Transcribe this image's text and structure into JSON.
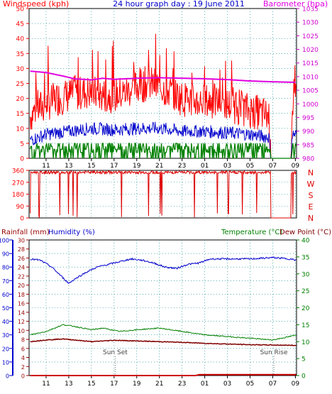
{
  "top_labels": {
    "windspeed": "Windspeed (kph)",
    "title": "24 hour graph day : 19 June 2011",
    "barometer": "Barometer (hpa)"
  },
  "bottom_labels": {
    "rainfall": "Rainfall (mm)",
    "humidity": "Humidity (%)",
    "temperature": "Temperature (°C)",
    "dewpoint": "Dew Point (°C)"
  },
  "annotations": {
    "sunset": "Sun Set",
    "sunrise": "Sun Rise"
  },
  "colors": {
    "wind_gust": "#ff0000",
    "wind_avg": "#0000cc",
    "wind_min": "#008000",
    "barometer": "#e000e0",
    "direction": "#dd0000",
    "humidity": "#0000cc",
    "temperature": "#008000",
    "dewpoint": "#800000",
    "rain": "#cc0000",
    "grid": "#008080",
    "axis_wind": "#ff0000",
    "axis_baro": "#d000d0",
    "axis_rain": "#0000cc",
    "axis_temp": "#008000"
  },
  "chart_data": [
    {
      "type": "line",
      "title": "24 hour graph day : 19 June 2011",
      "x_ticks": [
        "11",
        "13",
        "15",
        "17",
        "19",
        "21",
        "23",
        "01",
        "03",
        "05",
        "07",
        "09"
      ],
      "y_left": {
        "label": "Windspeed (kph)",
        "ticks": [
          0,
          5,
          10,
          15,
          20,
          25,
          30,
          35,
          40,
          45,
          50
        ],
        "range": [
          0,
          50
        ]
      },
      "y_right": {
        "label": "Barometer (hpa)",
        "ticks": [
          980,
          985,
          990,
          995,
          1000,
          1005,
          1010,
          1015,
          1020,
          1025,
          1030,
          1035
        ],
        "range": [
          980,
          1035
        ]
      },
      "x_range": [
        9.5,
        33.1
      ],
      "series": [
        {
          "name": "gust",
          "keys": [
            [
              9.6,
              14
            ],
            [
              10,
              16
            ],
            [
              11,
              18
            ],
            [
              12,
              20
            ],
            [
              13,
              21
            ],
            [
              14,
              22
            ],
            [
              15,
              22
            ],
            [
              16,
              21
            ],
            [
              17,
              21
            ],
            [
              18,
              22
            ],
            [
              19,
              24
            ],
            [
              20,
              25
            ],
            [
              21,
              24
            ],
            [
              22,
              22
            ],
            [
              23,
              20
            ],
            [
              24,
              19
            ],
            [
              25,
              19
            ],
            [
              26,
              19
            ],
            [
              27,
              18
            ],
            [
              28,
              17
            ],
            [
              29,
              16
            ],
            [
              30,
              15
            ],
            [
              30.7,
              14
            ],
            [
              30.8,
              0
            ],
            [
              32.6,
              0
            ],
            [
              32.7,
              18
            ],
            [
              33.1,
              19
            ]
          ]
        },
        {
          "name": "average",
          "keys": [
            [
              9.6,
              6
            ],
            [
              11,
              8
            ],
            [
              13,
              9
            ],
            [
              15,
              10
            ],
            [
              17,
              9.5
            ],
            [
              19,
              10
            ],
            [
              21,
              10
            ],
            [
              23,
              9
            ],
            [
              25,
              9
            ],
            [
              27,
              8.5
            ],
            [
              29,
              8
            ],
            [
              30.7,
              7
            ],
            [
              30.8,
              0
            ],
            [
              32.6,
              0
            ],
            [
              32.7,
              8
            ],
            [
              33.1,
              8
            ]
          ]
        },
        {
          "name": "low",
          "keys": [
            [
              9.6,
              3
            ],
            [
              13,
              3.5
            ],
            [
              19,
              4
            ],
            [
              23,
              3.5
            ],
            [
              27,
              3
            ],
            [
              30.7,
              3
            ],
            [
              30.8,
              0
            ],
            [
              32.6,
              0
            ],
            [
              32.7,
              4
            ],
            [
              33.1,
              4
            ]
          ]
        },
        {
          "name": "barometer",
          "keys": [
            [
              9.6,
              1012
            ],
            [
              11,
              1011.5
            ],
            [
              12.5,
              1010.2
            ],
            [
              13.5,
              1009.2
            ],
            [
              15,
              1008.8
            ],
            [
              16,
              1009.4
            ],
            [
              17,
              1009
            ],
            [
              19,
              1009.4
            ],
            [
              21,
              1009.6
            ],
            [
              23,
              1009.4
            ],
            [
              25,
              1009.2
            ],
            [
              27,
              1008.9
            ],
            [
              29,
              1008.4
            ],
            [
              31,
              1008.1
            ],
            [
              33.1,
              1007.9
            ]
          ]
        }
      ]
    },
    {
      "type": "scatter",
      "title": "",
      "y_left": {
        "ticks": [
          0,
          90,
          180,
          270,
          360
        ],
        "range": [
          0,
          360
        ]
      },
      "y_right_labels": [
        "N",
        "W",
        "S",
        "E",
        "N"
      ],
      "x_ticks": [
        "11",
        "13",
        "15",
        "17",
        "19",
        "21",
        "23",
        "01",
        "03",
        "05",
        "07",
        "09"
      ],
      "series": [
        {
          "name": "direction",
          "typical": 345,
          "gap": [
            30.8,
            32.6
          ]
        }
      ]
    },
    {
      "type": "line",
      "title": "",
      "x_ticks": [
        "11",
        "13",
        "15",
        "17",
        "19",
        "21",
        "23",
        "01",
        "03",
        "05",
        "07",
        "09"
      ],
      "y_rain": {
        "label": "Rainfall (mm)",
        "ticks": [
          0,
          2,
          4,
          6,
          8,
          10,
          12,
          14,
          16,
          18,
          20,
          22,
          24,
          26,
          28,
          30
        ],
        "range": [
          0,
          30
        ]
      },
      "y_humidity": {
        "label": "Humidity (%)",
        "ticks": [
          0,
          10,
          20,
          30,
          40,
          50,
          60,
          70,
          80,
          90,
          100
        ],
        "range": [
          0,
          100
        ]
      },
      "y_temp": {
        "label": "Temperature (°C)",
        "ticks": [
          0,
          5,
          10,
          15,
          20,
          25,
          30,
          35,
          40
        ],
        "range": [
          0,
          40
        ]
      },
      "series": [
        {
          "name": "humidity",
          "keys": [
            [
              9.6,
              86
            ],
            [
              10.5,
              85
            ],
            [
              11.5,
              80
            ],
            [
              12.5,
              72
            ],
            [
              13,
              68
            ],
            [
              13.5,
              71
            ],
            [
              14.5,
              76
            ],
            [
              15.5,
              80
            ],
            [
              16.5,
              82
            ],
            [
              17.5,
              84
            ],
            [
              18.5,
              86
            ],
            [
              19.5,
              85
            ],
            [
              20.5,
              83
            ],
            [
              21.5,
              80
            ],
            [
              22.5,
              79
            ],
            [
              23.5,
              82
            ],
            [
              24.5,
              83
            ],
            [
              25.5,
              86
            ],
            [
              27,
              86
            ],
            [
              29,
              86
            ],
            [
              31,
              87
            ],
            [
              32.5,
              86
            ],
            [
              33.1,
              85
            ]
          ]
        },
        {
          "name": "temperature",
          "keys": [
            [
              9.6,
              12
            ],
            [
              11,
              13
            ],
            [
              12.5,
              15
            ],
            [
              13.5,
              14.5
            ],
            [
              15,
              13.5
            ],
            [
              16,
              14
            ],
            [
              17.5,
              13
            ],
            [
              19,
              13.5
            ],
            [
              21,
              14
            ],
            [
              23,
              13
            ],
            [
              25,
              12
            ],
            [
              27,
              11.5
            ],
            [
              29,
              11
            ],
            [
              31,
              10.5
            ],
            [
              32.5,
              11.5
            ],
            [
              33.1,
              12
            ]
          ]
        },
        {
          "name": "dewpoint",
          "keys": [
            [
              9.6,
              10
            ],
            [
              11,
              10.5
            ],
            [
              12.5,
              10.8
            ],
            [
              13.5,
              10.5
            ],
            [
              15,
              10
            ],
            [
              17,
              10.4
            ],
            [
              19,
              10.2
            ],
            [
              21,
              10
            ],
            [
              23,
              9.8
            ],
            [
              25,
              9.5
            ],
            [
              27,
              9.3
            ],
            [
              29,
              9.1
            ],
            [
              31,
              9
            ],
            [
              33.1,
              8.9
            ]
          ]
        },
        {
          "name": "rain",
          "keys": [
            [
              9.6,
              0
            ],
            [
              24.2,
              0
            ],
            [
              24.5,
              0.2
            ],
            [
              33.1,
              0.2
            ]
          ]
        }
      ],
      "markers": [
        {
          "label": "Sun Set",
          "x": 17.1
        },
        {
          "label": "Sun Rise",
          "x": 31.1
        }
      ]
    }
  ]
}
